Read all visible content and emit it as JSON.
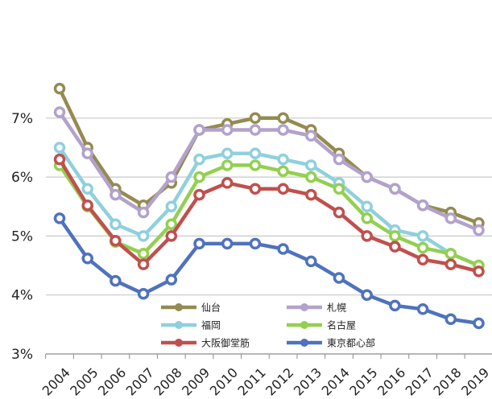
{
  "chart_data": {
    "type": "line",
    "title": "",
    "xlabel": "",
    "ylabel": "",
    "ylim": [
      3,
      8
    ],
    "yticks": [
      3,
      4,
      5,
      6,
      7
    ],
    "ytick_labels": [
      "3%",
      "4%",
      "5%",
      "6%",
      "7%"
    ],
    "grid": true,
    "legend_position": "lower-right-inside",
    "x": [
      "2004",
      "2005",
      "2006",
      "2007",
      "2008",
      "2009",
      "2010",
      "2011",
      "2012",
      "2013",
      "2014",
      "2015",
      "2016",
      "2017",
      "2018",
      "2019"
    ],
    "series": [
      {
        "name": "仙台",
        "color": "#958b50",
        "values": [
          7.5,
          6.5,
          5.8,
          5.52,
          5.9,
          6.8,
          6.9,
          7.0,
          7.0,
          6.8,
          6.4,
          6.0,
          5.8,
          5.52,
          5.4,
          5.22
        ]
      },
      {
        "name": "札幌",
        "color": "#b2a2cc",
        "values": [
          7.1,
          6.4,
          5.7,
          5.4,
          6.0,
          6.8,
          6.8,
          6.8,
          6.8,
          6.7,
          6.3,
          6.0,
          5.8,
          5.52,
          5.3,
          5.1
        ]
      },
      {
        "name": "福岡",
        "color": "#8fd0dd",
        "values": [
          6.5,
          5.8,
          5.2,
          5.0,
          5.5,
          6.3,
          6.4,
          6.4,
          6.3,
          6.2,
          5.9,
          5.5,
          5.1,
          5.0,
          4.7,
          4.5
        ]
      },
      {
        "name": "名古屋",
        "color": "#92d050",
        "values": [
          6.2,
          5.5,
          4.9,
          4.7,
          5.2,
          6.0,
          6.2,
          6.2,
          6.1,
          6.0,
          5.8,
          5.3,
          5.0,
          4.8,
          4.7,
          4.5
        ]
      },
      {
        "name": "大阪御堂筋",
        "color": "#c0504d",
        "values": [
          6.3,
          5.52,
          4.92,
          4.52,
          5.0,
          5.7,
          5.9,
          5.8,
          5.8,
          5.7,
          5.4,
          5.0,
          4.82,
          4.6,
          4.52,
          4.4
        ]
      },
      {
        "name": "東京都心部",
        "color": "#4f72be",
        "values": [
          5.3,
          4.62,
          4.24,
          4.02,
          4.26,
          4.87,
          4.87,
          4.87,
          4.78,
          4.57,
          4.29,
          4.0,
          3.82,
          3.76,
          3.59,
          3.52
        ]
      }
    ]
  }
}
